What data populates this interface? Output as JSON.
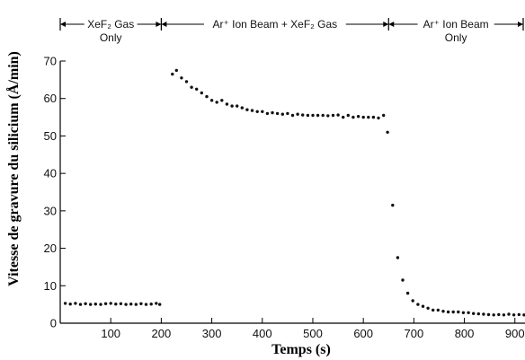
{
  "chart_data": {
    "type": "scatter",
    "xlabel": "Temps (s)",
    "ylabel": "Vitesse de gravure du silicium (Å/min)",
    "xlim": [
      0,
      920
    ],
    "ylim": [
      0,
      70
    ],
    "x_ticks": [
      100,
      200,
      300,
      400,
      500,
      600,
      700,
      800,
      900
    ],
    "y_ticks": [
      0,
      10,
      20,
      30,
      40,
      50,
      60,
      70
    ],
    "grid": false,
    "legend": "none",
    "phases": [
      {
        "line1": "XeF₂ Gas",
        "line2": "Only",
        "x_start": 0,
        "x_end": 200
      },
      {
        "line1": "Ar⁺ Ion Beam + XeF₂ Gas",
        "line2": "",
        "x_start": 200,
        "x_end": 650
      },
      {
        "line1": "Ar⁺ Ion Beam",
        "line2": "Only",
        "x_start": 650,
        "x_end": 920
      }
    ],
    "series": [
      {
        "color": "#111111",
        "x": [
          10,
          20,
          30,
          40,
          50,
          60,
          70,
          80,
          90,
          100,
          110,
          120,
          130,
          140,
          150,
          160,
          170,
          180,
          190,
          197,
          222,
          230,
          240,
          250,
          260,
          270,
          280,
          290,
          300,
          310,
          320,
          330,
          340,
          350,
          360,
          370,
          380,
          390,
          400,
          410,
          420,
          430,
          440,
          450,
          460,
          470,
          480,
          490,
          500,
          510,
          520,
          530,
          540,
          550,
          560,
          570,
          580,
          590,
          600,
          610,
          620,
          630,
          640,
          648,
          658,
          668,
          678,
          688,
          698,
          708,
          718,
          728,
          738,
          748,
          758,
          768,
          778,
          788,
          798,
          808,
          818,
          828,
          838,
          848,
          858,
          868,
          878,
          888,
          898,
          908,
          918
        ],
        "y": [
          5.3,
          5.1,
          5.3,
          5.0,
          5.2,
          5.0,
          5.1,
          5.0,
          5.2,
          5.3,
          5.1,
          5.2,
          5.0,
          5.1,
          5.0,
          5.2,
          5.0,
          5.1,
          5.3,
          5.0,
          66.5,
          67.5,
          65.5,
          64.5,
          63.0,
          62.5,
          61.5,
          60.5,
          59.5,
          59.0,
          59.5,
          58.5,
          58.0,
          58.0,
          57.5,
          57.0,
          56.8,
          56.5,
          56.5,
          56.0,
          56.2,
          56.0,
          55.8,
          56.0,
          55.5,
          55.8,
          55.6,
          55.5,
          55.5,
          55.5,
          55.5,
          55.4,
          55.5,
          55.6,
          55.0,
          55.5,
          55.0,
          55.2,
          55.0,
          55.0,
          55.0,
          54.8,
          55.5,
          51.0,
          31.5,
          17.5,
          11.5,
          8.0,
          6.0,
          5.0,
          4.5,
          4.0,
          3.5,
          3.5,
          3.2,
          3.0,
          3.0,
          3.0,
          2.8,
          2.8,
          2.6,
          2.5,
          2.4,
          2.3,
          2.2,
          2.3,
          2.2,
          2.4,
          2.2,
          2.3,
          2.2
        ]
      }
    ]
  }
}
